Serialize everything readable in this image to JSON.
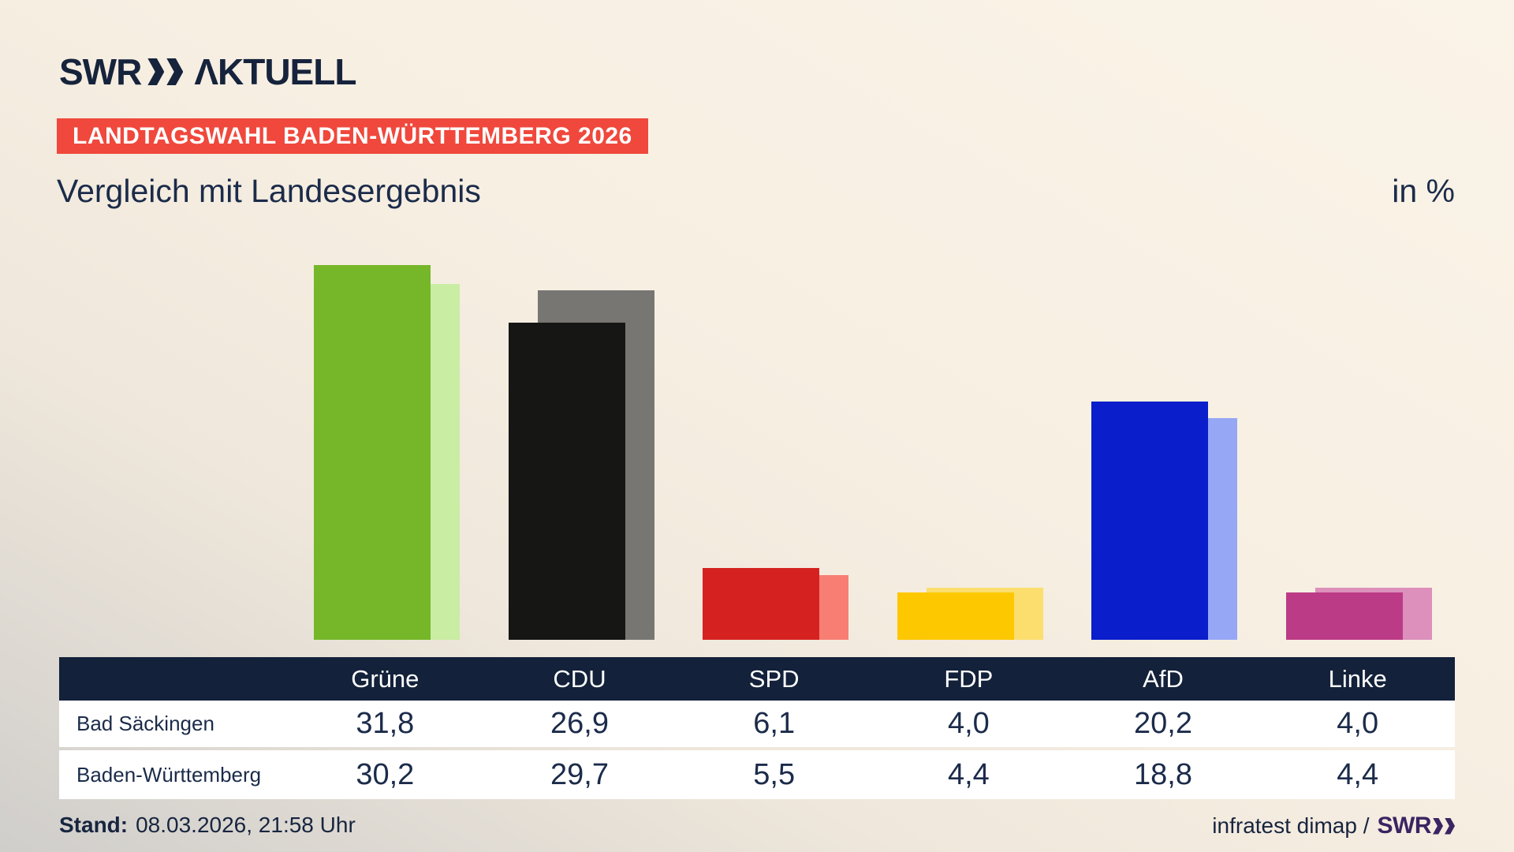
{
  "header": {
    "logo_swr": "SWR",
    "logo_aktuell": "ΛKTUELL",
    "banner": "LANDTAGSWAHL BADEN-WÜRTTEMBERG 2026",
    "title": "Vergleich mit Landesergebnis",
    "unit_label": "in %"
  },
  "chart_data": {
    "type": "bar",
    "categories": [
      "Grüne",
      "CDU",
      "SPD",
      "FDP",
      "AfD",
      "Linke"
    ],
    "series": [
      {
        "name": "Bad Säckingen",
        "values": [
          31.8,
          26.9,
          6.1,
          4.0,
          20.2,
          4.0
        ]
      },
      {
        "name": "Baden-Württemberg",
        "values": [
          30.2,
          29.7,
          5.5,
          4.4,
          18.8,
          4.4
        ]
      }
    ],
    "bar_colors_main": [
      "#76B729",
      "#161615",
      "#D52221",
      "#FDC800",
      "#0A1ECB",
      "#BC3B86"
    ],
    "bar_colors_compare": [
      "#C9EDA2",
      "#787673",
      "#F87E73",
      "#FBDE6E",
      "#96A7F6",
      "#DC90BB"
    ],
    "title": "Vergleich mit Landesergebnis",
    "unit": "in %",
    "ylim": [
      0,
      33
    ],
    "axes": "hidden",
    "grid": false,
    "legend": "table-below"
  },
  "table": {
    "header": [
      "",
      "Grüne",
      "CDU",
      "SPD",
      "FDP",
      "AfD",
      "Linke"
    ],
    "rows": [
      {
        "label": "Bad Säckingen",
        "values": [
          "31,8",
          "26,9",
          "6,1",
          "4,0",
          "20,2",
          "4,0"
        ]
      },
      {
        "label": "Baden-Württemberg",
        "values": [
          "30,2",
          "29,7",
          "5,5",
          "4,4",
          "18,8",
          "4,4"
        ]
      }
    ]
  },
  "footer": {
    "stand_label": "Stand:",
    "stand_value": "08.03.2026, 21:58 Uhr",
    "source_text": "infratest dimap /",
    "source_brand": "SWR"
  },
  "colors": {
    "banner_bg": "#F0483C",
    "banner_text": "#FFFFFF",
    "text_navy": "#1B2B4A",
    "table_header_bg": "#13213A",
    "table_row_bg": "#FFFFFF",
    "brand_purple": "#3A2462",
    "background_cream": "#FAF3E7",
    "background_gray": "#D0CECB"
  }
}
